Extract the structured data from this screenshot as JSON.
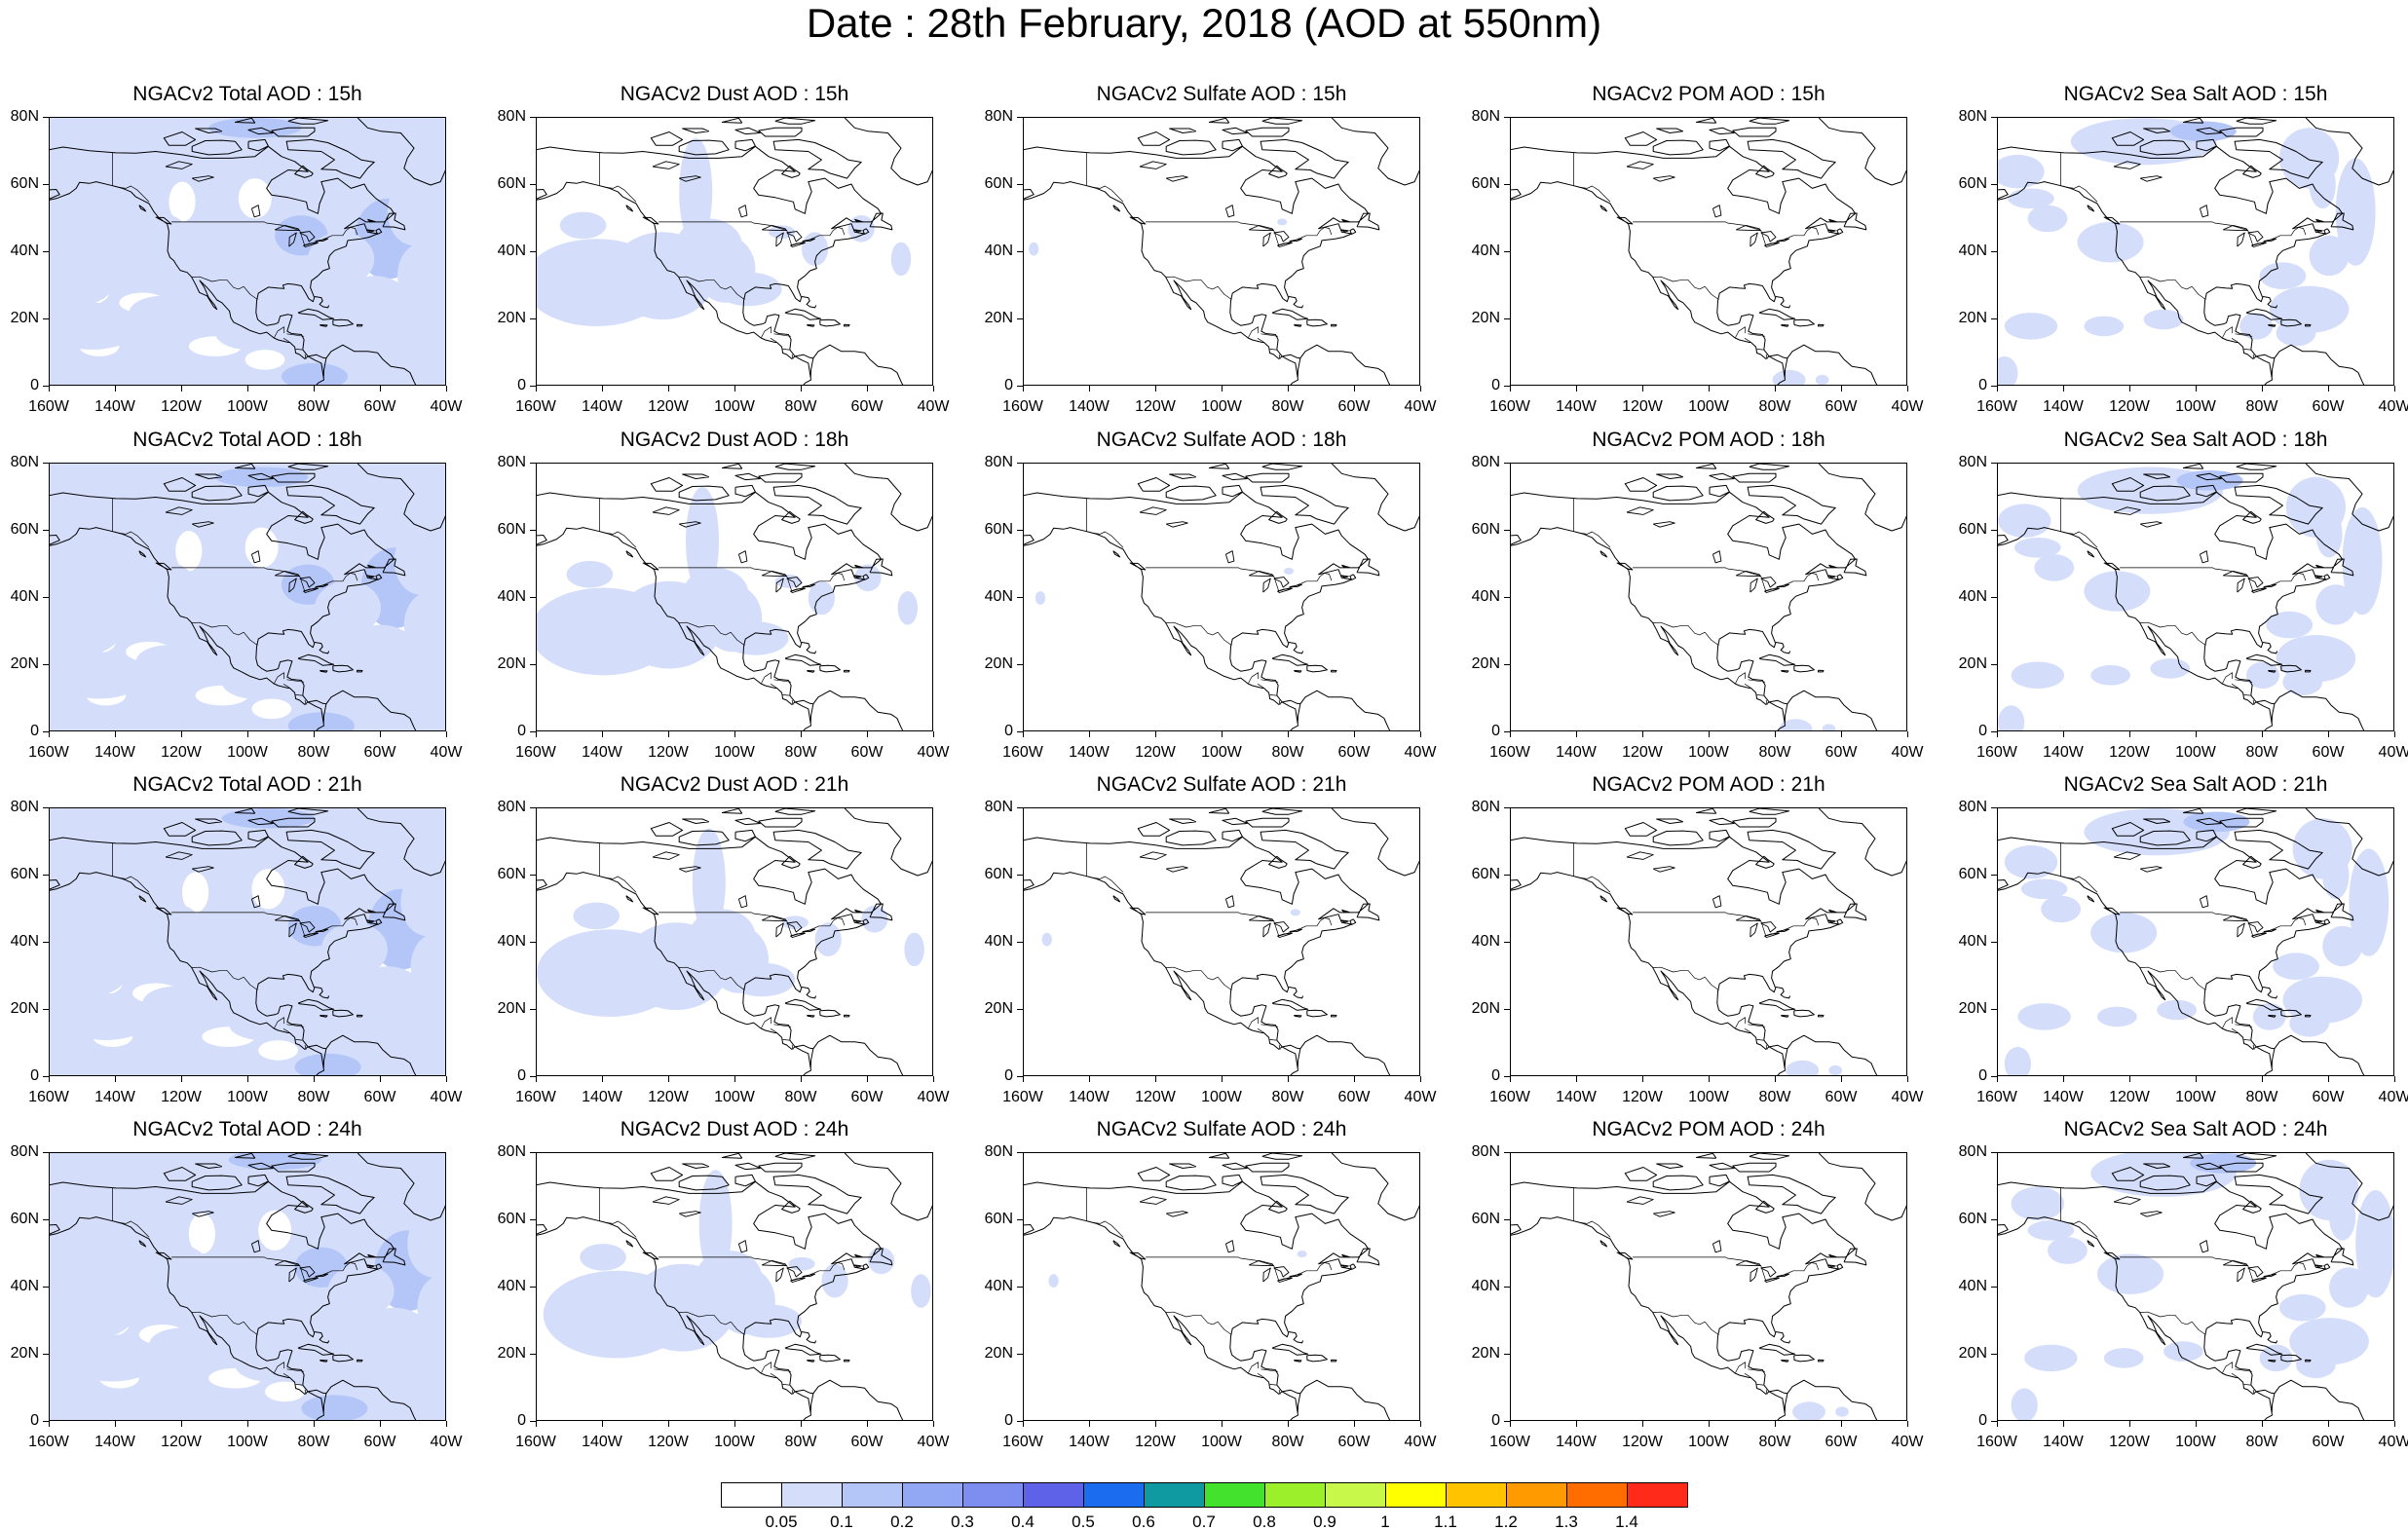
{
  "title": "Date : 28th February, 2018 (AOD at 550nm)",
  "x_ticks": [
    "160W",
    "140W",
    "120W",
    "100W",
    "80W",
    "60W",
    "40W"
  ],
  "y_ticks": [
    "80N",
    "60N",
    "40N",
    "20N",
    "0"
  ],
  "panels": [
    {
      "title": "NGACv2 Total AOD : 15h",
      "species": "total",
      "hour": 15
    },
    {
      "title": "NGACv2 Dust AOD : 15h",
      "species": "dust",
      "hour": 15
    },
    {
      "title": "NGACv2 Sulfate AOD : 15h",
      "species": "sulfate",
      "hour": 15
    },
    {
      "title": "NGACv2 POM AOD : 15h",
      "species": "pom",
      "hour": 15
    },
    {
      "title": "NGACv2 Sea Salt AOD : 15h",
      "species": "seasalt",
      "hour": 15
    },
    {
      "title": "NGACv2 Total AOD : 18h",
      "species": "total",
      "hour": 18
    },
    {
      "title": "NGACv2 Dust AOD : 18h",
      "species": "dust",
      "hour": 18
    },
    {
      "title": "NGACv2 Sulfate AOD : 18h",
      "species": "sulfate",
      "hour": 18
    },
    {
      "title": "NGACv2 POM AOD : 18h",
      "species": "pom",
      "hour": 18
    },
    {
      "title": "NGACv2 Sea Salt AOD : 18h",
      "species": "seasalt",
      "hour": 18
    },
    {
      "title": "NGACv2 Total AOD : 21h",
      "species": "total",
      "hour": 21
    },
    {
      "title": "NGACv2 Dust AOD : 21h",
      "species": "dust",
      "hour": 21
    },
    {
      "title": "NGACv2 Sulfate AOD : 21h",
      "species": "sulfate",
      "hour": 21
    },
    {
      "title": "NGACv2 POM AOD : 21h",
      "species": "pom",
      "hour": 21
    },
    {
      "title": "NGACv2 Sea Salt AOD : 21h",
      "species": "seasalt",
      "hour": 21
    },
    {
      "title": "NGACv2 Total AOD : 24h",
      "species": "total",
      "hour": 24
    },
    {
      "title": "NGACv2 Dust AOD : 24h",
      "species": "dust",
      "hour": 24
    },
    {
      "title": "NGACv2 Sulfate AOD : 24h",
      "species": "sulfate",
      "hour": 24
    },
    {
      "title": "NGACv2 POM AOD : 24h",
      "species": "pom",
      "hour": 24
    },
    {
      "title": "NGACv2 Sea Salt  AOD : 24h",
      "species": "seasalt",
      "hour": 24
    }
  ],
  "colorbar": {
    "colors": [
      "#ffffff",
      "#d4defb",
      "#b4c5f7",
      "#92a8f4",
      "#7d8df0",
      "#5d62e9",
      "#1c6cef",
      "#0f9aa1",
      "#43e22c",
      "#9bf02b",
      "#c8f84a",
      "#ffff00",
      "#ffc300",
      "#ff9b00",
      "#ff6c00",
      "#ff2a1a"
    ],
    "labels": [
      "0.05",
      "0.1",
      "0.2",
      "0.3",
      "0.4",
      "0.5",
      "0.6",
      "0.7",
      "0.8",
      "0.9",
      "1",
      "1.1",
      "1.2",
      "1.3",
      "1.4"
    ]
  }
}
